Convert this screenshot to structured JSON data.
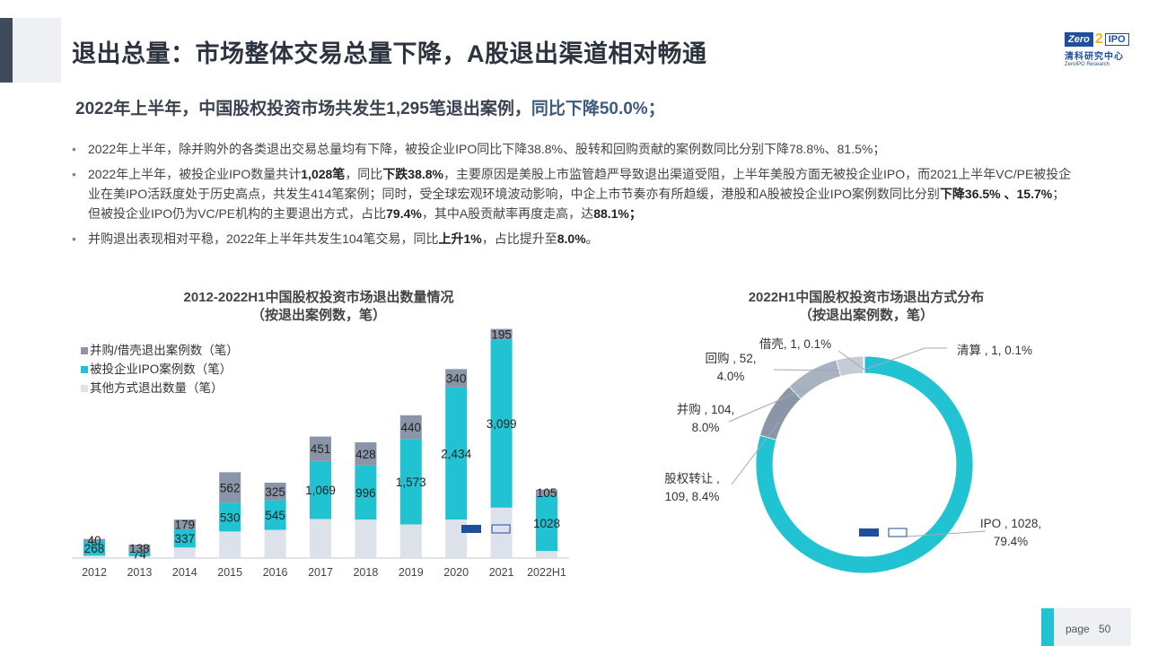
{
  "header": {
    "title": "退出总量：市场整体交易总量下降，A股退出渠道相对畅通",
    "logo": {
      "zero": "Zero",
      "two": "2",
      "ipo": "IPO",
      "cn": "清科研究中心",
      "en": "ZeroIPO Research"
    }
  },
  "subhead": {
    "main": "2022年上半年，中国股权投资市场共发生1,295笔退出案例，",
    "highlight": "同比下降50.0%；"
  },
  "bullets": [
    {
      "segments": [
        {
          "t": "2022年上半年，除并购外的各类退出交易总量均有下降，被投企业IPO同比下降38.8%、股转和回购贡献的案例数同比分别下降78.8%、81.5%；",
          "b": false
        }
      ]
    },
    {
      "segments": [
        {
          "t": "2022年上半年，被投企业IPO数量共计",
          "b": false
        },
        {
          "t": "1,028笔",
          "b": true
        },
        {
          "t": "，同比",
          "b": false
        },
        {
          "t": "下跌38.8%",
          "b": true
        },
        {
          "t": "，主要原因是美股上市监管趋严导致退出渠道受阻，上半年美股方面无被投企业IPO，而2021上半年VC/PE被投企业在美IPO活跃度处于历史高点，共发生414笔案例；同时，受全球宏观环境波动影响，中企上市节奏亦有所趋缓，港股和A股被投企业IPO案例数同比分别",
          "b": false
        },
        {
          "t": "下降36.5% 、15.7%",
          "b": true
        },
        {
          "t": "；但被投企业IPO仍为VC/PE机构的主要退出方式，占比",
          "b": false
        },
        {
          "t": "79.4%",
          "b": true
        },
        {
          "t": "，其中A股贡献率再度走高，达",
          "b": false
        },
        {
          "t": "88.1%；",
          "b": true
        }
      ]
    },
    {
      "segments": [
        {
          "t": "并购退出表现相对平稳，2022年上半年共发生104笔交易，同比",
          "b": false
        },
        {
          "t": "上升1%",
          "b": true
        },
        {
          "t": "，占比提升至",
          "b": false
        },
        {
          "t": "8.0%",
          "b": true
        },
        {
          "t": "。",
          "b": false
        }
      ]
    }
  ],
  "chart_data": [
    {
      "type": "bar",
      "title": "2012-2022H1中国股权投资市场退出数量情况",
      "subtitle": "（按退出案例数，笔）",
      "categories": [
        "2012",
        "2013",
        "2014",
        "2015",
        "2016",
        "2017",
        "2018",
        "2019",
        "2020",
        "2021",
        "2022H1"
      ],
      "series": [
        {
          "name": "其他方式退出数量（笔）",
          "values": [
            45,
            35,
            195,
            490,
            520,
            720,
            710,
            620,
            710,
            930,
            130
          ],
          "color": "#dde1ea"
        },
        {
          "name": "被投企业IPO案例数（笔）",
          "labels": [
            "268",
            "74",
            "337",
            "530",
            "545",
            "1,069",
            "996",
            "1,573",
            "2,434",
            "3,099",
            "1028"
          ],
          "values": [
            268,
            74,
            337,
            530,
            545,
            1069,
            996,
            1573,
            2434,
            3099,
            1028
          ],
          "color": "#21c3d3"
        },
        {
          "name": "并购/借壳退出案例数（笔）",
          "labels": [
            "40",
            "138",
            "179",
            "562",
            "325",
            "451",
            "428",
            "440",
            "340",
            "195",
            "105"
          ],
          "values": [
            40,
            138,
            179,
            562,
            325,
            451,
            428,
            440,
            340,
            195,
            105
          ],
          "color": "#8a96a8"
        }
      ],
      "legend": "top-left",
      "ylim": [
        0,
        4300
      ]
    },
    {
      "type": "pie",
      "title": "2022H1中国股权投资市场退出方式分布",
      "subtitle": "（按退出案例数，笔）",
      "slices": [
        {
          "label": "IPO , 1028,",
          "label2": "79.4%",
          "value": 1028,
          "color": "#21c3d3"
        },
        {
          "label": "股权转让 ,",
          "label2": "109, 8.4%",
          "value": 109,
          "color": "#8a96a8"
        },
        {
          "label": "并购 , 104,",
          "label2": "8.0%",
          "value": 104,
          "color": "#a9b2c0"
        },
        {
          "label": "回购 , 52,",
          "label2": "4.0%",
          "value": 52,
          "color": "#c5ccd6"
        },
        {
          "label": "借壳, 1, 0.1%",
          "label2": "",
          "value": 1,
          "color": "#d5dbe3"
        },
        {
          "label": "清算 , 1, 0.1%",
          "label2": "",
          "value": 1,
          "color": "#e3e7ed"
        }
      ]
    }
  ],
  "footer": {
    "page_label": "page",
    "page_number": "50"
  }
}
